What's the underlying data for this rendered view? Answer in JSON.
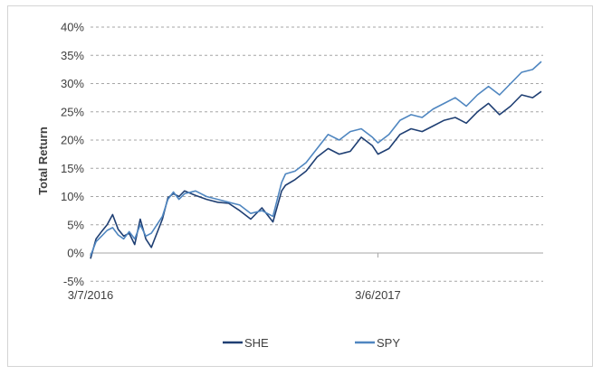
{
  "chart_data": {
    "type": "line",
    "ylabel": "Total Return",
    "xlabel": "",
    "ylim": [
      -5,
      40
    ],
    "yticks": [
      -5,
      0,
      5,
      10,
      15,
      20,
      25,
      30,
      35,
      40
    ],
    "ytick_labels": [
      "-5%",
      "0%",
      "5%",
      "10%",
      "15%",
      "20%",
      "25%",
      "30%",
      "35%",
      "40%"
    ],
    "x_tick_labels": [
      "3/7/2016",
      "3/6/2017"
    ],
    "x_start": "3/7/2016",
    "x_end": "9/29/2017",
    "x_tick_dates": [
      "3/7/2016",
      "3/6/2017"
    ],
    "grid": "horizontal dashed",
    "legend_position": "bottom",
    "series": [
      {
        "name": "SHE",
        "color": "#1f3f73",
        "x": [
          "3/7/2016",
          "3/14/2016",
          "3/21/2016",
          "3/28/2016",
          "4/4/2016",
          "4/11/2016",
          "4/18/2016",
          "4/25/2016",
          "5/2/2016",
          "5/9/2016",
          "5/16/2016",
          "5/23/2016",
          "6/6/2016",
          "6/13/2016",
          "6/20/2016",
          "6/27/2016",
          "7/4/2016",
          "7/18/2016",
          "8/1/2016",
          "8/15/2016",
          "8/29/2016",
          "9/12/2016",
          "9/26/2016",
          "10/10/2016",
          "10/24/2016",
          "11/4/2016",
          "11/9/2016",
          "11/21/2016",
          "12/5/2016",
          "12/19/2016",
          "1/2/2017",
          "1/16/2017",
          "1/30/2017",
          "2/13/2017",
          "2/27/2017",
          "3/6/2017",
          "3/20/2017",
          "4/3/2017",
          "4/17/2017",
          "5/1/2017",
          "5/15/2017",
          "5/29/2017",
          "6/12/2017",
          "6/26/2017",
          "7/10/2017",
          "7/24/2017",
          "8/7/2017",
          "8/21/2017",
          "9/4/2017",
          "9/18/2017",
          "9/29/2017"
        ],
        "values": [
          -1,
          2.5,
          3.8,
          5,
          6.8,
          4.2,
          3,
          3.5,
          1.5,
          6,
          2.5,
          1,
          6,
          9.8,
          10.5,
          10,
          11,
          10.2,
          9.5,
          9,
          8.8,
          7.5,
          6,
          8,
          5.5,
          11,
          12,
          13,
          14.5,
          17,
          18.5,
          17.5,
          18,
          20.5,
          19,
          17.5,
          18.5,
          21,
          22,
          21.5,
          22.5,
          23.5,
          24,
          23,
          25,
          26.5,
          24.5,
          26,
          28,
          27.5,
          28.6
        ]
      },
      {
        "name": "SPY",
        "color": "#4f86c0",
        "x": [
          "3/7/2016",
          "3/14/2016",
          "3/21/2016",
          "3/28/2016",
          "4/4/2016",
          "4/11/2016",
          "4/18/2016",
          "4/25/2016",
          "5/2/2016",
          "5/9/2016",
          "5/16/2016",
          "5/23/2016",
          "6/6/2016",
          "6/13/2016",
          "6/20/2016",
          "6/27/2016",
          "7/4/2016",
          "7/18/2016",
          "8/1/2016",
          "8/15/2016",
          "8/29/2016",
          "9/12/2016",
          "9/26/2016",
          "10/10/2016",
          "10/24/2016",
          "11/4/2016",
          "11/9/2016",
          "11/21/2016",
          "12/5/2016",
          "12/19/2016",
          "1/2/2017",
          "1/16/2017",
          "1/30/2017",
          "2/13/2017",
          "2/27/2017",
          "3/6/2017",
          "3/20/2017",
          "4/3/2017",
          "4/17/2017",
          "5/1/2017",
          "5/15/2017",
          "5/29/2017",
          "6/12/2017",
          "6/26/2017",
          "7/10/2017",
          "7/24/2017",
          "8/7/2017",
          "8/21/2017",
          "9/4/2017",
          "9/18/2017",
          "9/29/2017"
        ],
        "values": [
          -0.5,
          2,
          3,
          4,
          4.5,
          3.2,
          2.5,
          3.8,
          2.5,
          5,
          3,
          3.5,
          6.5,
          9.5,
          10.8,
          9.5,
          10.5,
          11,
          10,
          9.5,
          9,
          8.5,
          7,
          7.5,
          6.5,
          12.5,
          14,
          14.5,
          16,
          18.5,
          21,
          20,
          21.5,
          22,
          20.5,
          19.5,
          21,
          23.5,
          24.5,
          24,
          25.5,
          26.5,
          27.5,
          26,
          28,
          29.5,
          28,
          30,
          32,
          32.5,
          33.9
        ]
      }
    ]
  }
}
